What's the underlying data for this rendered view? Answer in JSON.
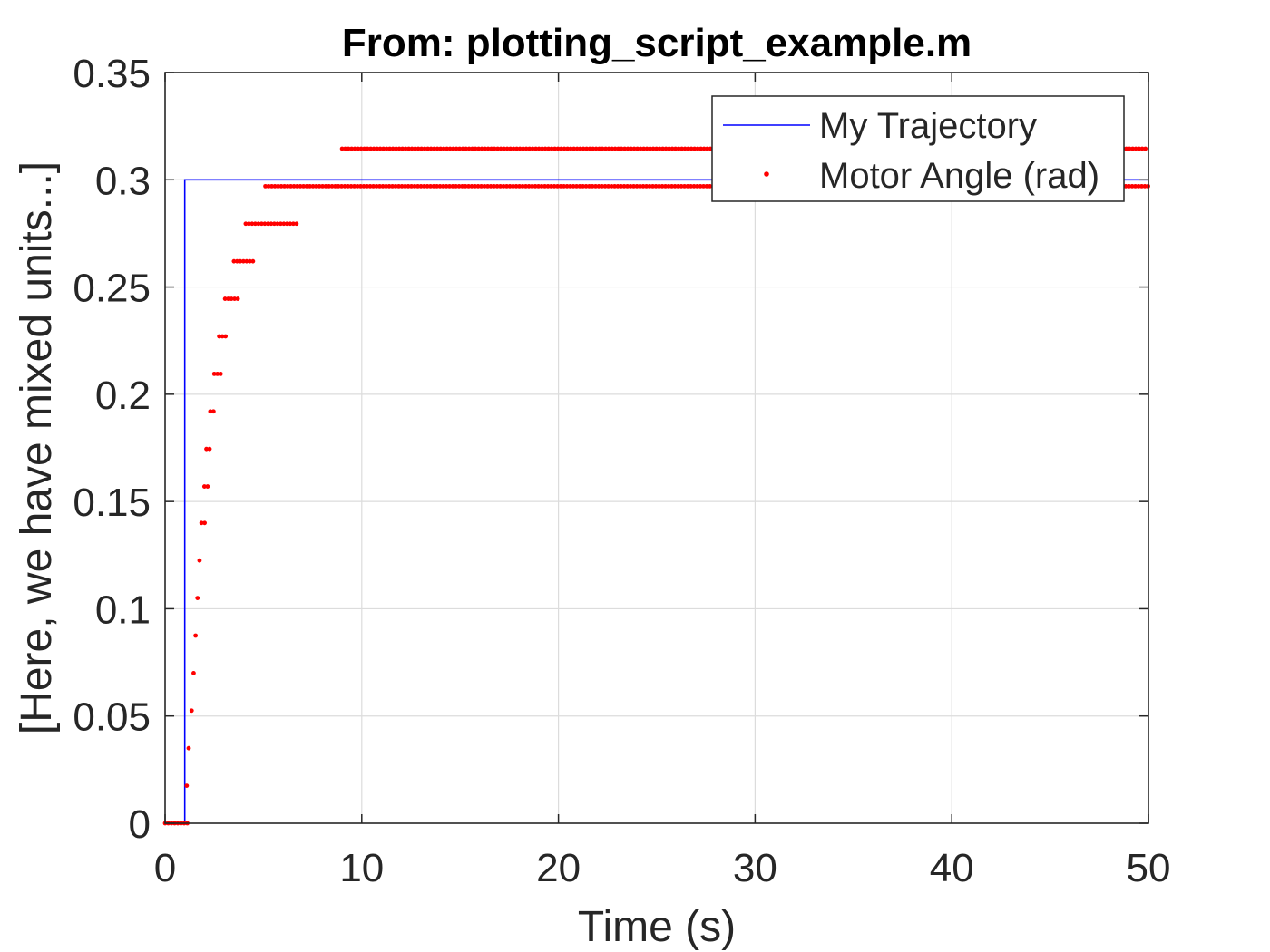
{
  "chart_data": {
    "type": "line",
    "title": "From: plotting_script_example.m",
    "xlabel": "Time (s)",
    "ylabel": "[Here, we have mixed units...]",
    "xlim": [
      0,
      50
    ],
    "ylim": [
      0,
      0.35
    ],
    "xticks": [
      0,
      10,
      20,
      30,
      40,
      50
    ],
    "xtick_labels": [
      "0",
      "10",
      "20",
      "30",
      "40",
      "50"
    ],
    "yticks": [
      0,
      0.05,
      0.1,
      0.15,
      0.2,
      0.25,
      0.3,
      0.35
    ],
    "ytick_labels": [
      "0",
      "0.05",
      "0.1",
      "0.15",
      "0.2",
      "0.25",
      "0.3",
      "0.35"
    ],
    "grid": true,
    "legend_position": "top-right",
    "series": [
      {
        "name": "My Trajectory",
        "style": "line",
        "color": "#0000ff",
        "x": [
          0,
          1.0,
          1.0,
          50
        ],
        "y": [
          0,
          0,
          0.3,
          0.3
        ]
      },
      {
        "name": "Motor Angle (rad)",
        "style": "points",
        "color": "#ff0000",
        "segments": [
          {
            "x": [
              0.0,
              1.2
            ],
            "y": 0
          },
          {
            "x": [
              1.1,
              1.1
            ],
            "y": 0.0175
          },
          {
            "x": [
              1.2,
              1.3
            ],
            "y": 0.035
          },
          {
            "x": [
              1.35,
              1.45
            ],
            "y": 0.0525
          },
          {
            "x": [
              1.45,
              1.55
            ],
            "y": 0.07
          },
          {
            "x": [
              1.55,
              1.65
            ],
            "y": 0.0875
          },
          {
            "x": [
              1.65,
              1.8
            ],
            "y": 0.105
          },
          {
            "x": [
              1.75,
              1.9
            ],
            "y": 0.1225
          },
          {
            "x": [
              1.85,
              2.05
            ],
            "y": 0.14
          },
          {
            "x": [
              2.0,
              2.2
            ],
            "y": 0.157
          },
          {
            "x": [
              2.1,
              2.4
            ],
            "y": 0.1745
          },
          {
            "x": [
              2.3,
              2.6
            ],
            "y": 0.192
          },
          {
            "x": [
              2.5,
              2.9
            ],
            "y": 0.2095
          },
          {
            "x": [
              2.75,
              3.2
            ],
            "y": 0.227
          },
          {
            "x": [
              3.05,
              3.7
            ],
            "y": 0.2445
          },
          {
            "x": [
              3.5,
              4.6
            ],
            "y": 0.262
          },
          {
            "x": [
              4.1,
              6.7
            ],
            "y": 0.2795
          },
          {
            "x": [
              5.1,
              50
            ],
            "y": 0.297
          },
          {
            "x": [
              9.0,
              50
            ],
            "y": 0.3145
          }
        ]
      }
    ]
  }
}
